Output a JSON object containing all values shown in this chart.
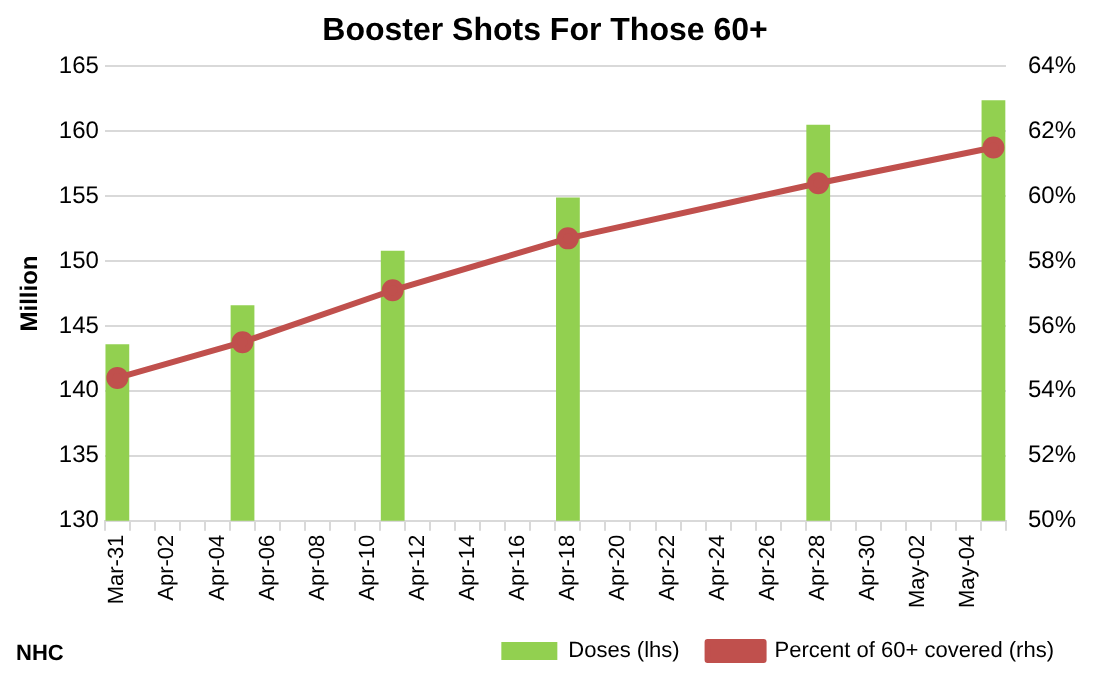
{
  "chart_data": {
    "type": "bar",
    "title": "Booster Shots For Those 60+",
    "ylabel": "Million",
    "categories": [
      "Mar-31",
      null,
      "Apr-02",
      null,
      "Apr-04",
      null,
      "Apr-06",
      null,
      "Apr-08",
      null,
      "Apr-10",
      null,
      "Apr-12",
      null,
      "Apr-14",
      null,
      "Apr-16",
      null,
      "Apr-18",
      null,
      "Apr-20",
      null,
      "Apr-22",
      null,
      "Apr-24",
      null,
      "Apr-26",
      null,
      "Apr-28",
      null,
      "Apr-30",
      null,
      "May-02",
      null,
      "May-04",
      null
    ],
    "series": [
      {
        "name": "Doses (lhs)",
        "color": "#92d050",
        "values": [
          143.6,
          null,
          null,
          null,
          null,
          146.6,
          null,
          null,
          null,
          null,
          null,
          150.8,
          null,
          null,
          null,
          null,
          null,
          null,
          154.9,
          null,
          null,
          null,
          null,
          null,
          null,
          null,
          null,
          null,
          160.5,
          null,
          null,
          null,
          null,
          null,
          null,
          162.4
        ]
      },
      {
        "name": "Percent of 60+ covered (rhs)",
        "type": "line",
        "axis": "y2",
        "color": "#c0504d",
        "marker": "circle",
        "values": [
          54.4,
          null,
          null,
          null,
          null,
          55.5,
          null,
          null,
          null,
          null,
          null,
          57.1,
          null,
          null,
          null,
          null,
          null,
          null,
          58.7,
          null,
          null,
          null,
          null,
          null,
          null,
          null,
          null,
          null,
          60.4,
          null,
          null,
          null,
          null,
          null,
          null,
          61.5
        ]
      }
    ],
    "ylim": [
      130,
      165
    ],
    "yticks": [
      130,
      135,
      140,
      145,
      150,
      155,
      160,
      165
    ],
    "y2lim": [
      50,
      64
    ],
    "y2ticks": [
      {
        "value": 50,
        "label": "50%"
      },
      {
        "value": 52,
        "label": "52%"
      },
      {
        "value": 54,
        "label": "54%"
      },
      {
        "value": 56,
        "label": "56%"
      },
      {
        "value": 58,
        "label": "58%"
      },
      {
        "value": 60,
        "label": "60%"
      },
      {
        "value": 62,
        "label": "62%"
      },
      {
        "value": 64,
        "label": "64%"
      }
    ],
    "grid": "y",
    "legend": "bottom",
    "annotations": [
      "NHC"
    ]
  }
}
